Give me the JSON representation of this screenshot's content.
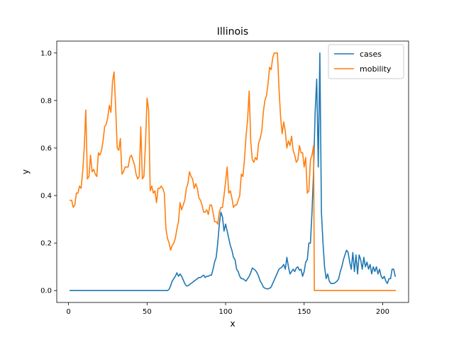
{
  "chart_data": {
    "type": "line",
    "title": "Illinois",
    "xlabel": "x",
    "ylabel": "y",
    "xlim": [
      -7.5,
      216.5
    ],
    "ylim": [
      -0.05,
      1.05
    ],
    "xticks": [
      0,
      50,
      100,
      150,
      200
    ],
    "yticks": [
      0.0,
      0.2,
      0.4,
      0.6,
      0.8,
      1.0
    ],
    "xtick_labels": [
      "0",
      "50",
      "100",
      "150",
      "200"
    ],
    "ytick_labels": [
      "0.0",
      "0.2",
      "0.4",
      "0.6",
      "0.8",
      "1.0"
    ],
    "grid": false,
    "legend_position": "top-right",
    "series": [
      {
        "name": "cases",
        "color": "#1f77b4",
        "points": [
          [
            1,
            0
          ],
          [
            10,
            0
          ],
          [
            20,
            0
          ],
          [
            30,
            0
          ],
          [
            40,
            0
          ],
          [
            50,
            0
          ],
          [
            60,
            0
          ],
          [
            63,
            0
          ],
          [
            64,
            0.005
          ],
          [
            65,
            0.02
          ],
          [
            66,
            0.04
          ],
          [
            67,
            0.05
          ],
          [
            68,
            0.06
          ],
          [
            69,
            0.075
          ],
          [
            70,
            0.06
          ],
          [
            71,
            0.07
          ],
          [
            72,
            0.06
          ],
          [
            73,
            0.045
          ],
          [
            74,
            0.03
          ],
          [
            75,
            0.02
          ],
          [
            76,
            0.02
          ],
          [
            77,
            0.025
          ],
          [
            78,
            0.03
          ],
          [
            79,
            0.035
          ],
          [
            80,
            0.04
          ],
          [
            81,
            0.045
          ],
          [
            82,
            0.05
          ],
          [
            83,
            0.055
          ],
          [
            84,
            0.055
          ],
          [
            85,
            0.06
          ],
          [
            86,
            0.065
          ],
          [
            87,
            0.055
          ],
          [
            88,
            0.06
          ],
          [
            89,
            0.06
          ],
          [
            90,
            0.065
          ],
          [
            91,
            0.065
          ],
          [
            92,
            0.09
          ],
          [
            93,
            0.12
          ],
          [
            94,
            0.14
          ],
          [
            95,
            0.2
          ],
          [
            96,
            0.28
          ],
          [
            97,
            0.33
          ],
          [
            98,
            0.31
          ],
          [
            99,
            0.25
          ],
          [
            100,
            0.28
          ],
          [
            101,
            0.25
          ],
          [
            102,
            0.22
          ],
          [
            103,
            0.19
          ],
          [
            104,
            0.17
          ],
          [
            105,
            0.14
          ],
          [
            106,
            0.13
          ],
          [
            107,
            0.09
          ],
          [
            108,
            0.08
          ],
          [
            109,
            0.06
          ],
          [
            110,
            0.05
          ],
          [
            111,
            0.05
          ],
          [
            112,
            0.045
          ],
          [
            113,
            0.04
          ],
          [
            114,
            0.05
          ],
          [
            115,
            0.06
          ],
          [
            116,
            0.075
          ],
          [
            117,
            0.095
          ],
          [
            118,
            0.09
          ],
          [
            119,
            0.085
          ],
          [
            120,
            0.075
          ],
          [
            121,
            0.06
          ],
          [
            122,
            0.04
          ],
          [
            123,
            0.03
          ],
          [
            124,
            0.015
          ],
          [
            125,
            0.01
          ],
          [
            126,
            0.008
          ],
          [
            127,
            0.007
          ],
          [
            128,
            0.01
          ],
          [
            129,
            0.015
          ],
          [
            130,
            0.03
          ],
          [
            131,
            0.045
          ],
          [
            132,
            0.06
          ],
          [
            133,
            0.075
          ],
          [
            134,
            0.09
          ],
          [
            135,
            0.095
          ],
          [
            136,
            0.1
          ],
          [
            137,
            0.11
          ],
          [
            138,
            0.09
          ],
          [
            139,
            0.14
          ],
          [
            140,
            0.1
          ],
          [
            141,
            0.07
          ],
          [
            142,
            0.08
          ],
          [
            143,
            0.09
          ],
          [
            144,
            0.08
          ],
          [
            145,
            0.095
          ],
          [
            146,
            0.1
          ],
          [
            147,
            0.085
          ],
          [
            148,
            0.09
          ],
          [
            149,
            0.06
          ],
          [
            150,
            0.08
          ],
          [
            151,
            0.12
          ],
          [
            152,
            0.13
          ],
          [
            153,
            0.2
          ],
          [
            154,
            0.2
          ],
          [
            155,
            0.33
          ],
          [
            156,
            0.5
          ],
          [
            157,
            0.75
          ],
          [
            158,
            0.89
          ],
          [
            159,
            0.52
          ],
          [
            160,
            1.0
          ],
          [
            161,
            0.33
          ],
          [
            162,
            0.2
          ],
          [
            163,
            0.1
          ],
          [
            164,
            0.05
          ],
          [
            165,
            0.07
          ],
          [
            166,
            0.04
          ],
          [
            167,
            0.03
          ],
          [
            168,
            0.03
          ],
          [
            169,
            0.03
          ],
          [
            170,
            0.035
          ],
          [
            171,
            0.04
          ],
          [
            172,
            0.05
          ],
          [
            173,
            0.08
          ],
          [
            174,
            0.1
          ],
          [
            175,
            0.13
          ],
          [
            176,
            0.15
          ],
          [
            177,
            0.17
          ],
          [
            178,
            0.16
          ],
          [
            179,
            0.12
          ],
          [
            180,
            0.09
          ],
          [
            181,
            0.16
          ],
          [
            182,
            0.08
          ],
          [
            183,
            0.15
          ],
          [
            184,
            0.07
          ],
          [
            185,
            0.15
          ],
          [
            186,
            0.13
          ],
          [
            187,
            0.09
          ],
          [
            188,
            0.14
          ],
          [
            189,
            0.1
          ],
          [
            190,
            0.12
          ],
          [
            191,
            0.09
          ],
          [
            192,
            0.11
          ],
          [
            193,
            0.07
          ],
          [
            194,
            0.1
          ],
          [
            195,
            0.08
          ],
          [
            196,
            0.1
          ],
          [
            197,
            0.07
          ],
          [
            198,
            0.09
          ],
          [
            199,
            0.06
          ],
          [
            200,
            0.05
          ],
          [
            201,
            0.06
          ],
          [
            202,
            0.04
          ],
          [
            203,
            0.03
          ],
          [
            204,
            0.05
          ],
          [
            205,
            0.05
          ],
          [
            206,
            0.09
          ],
          [
            207,
            0.09
          ],
          [
            208,
            0.06
          ]
        ]
      },
      {
        "name": "mobility",
        "color": "#ff7f0e",
        "points": [
          [
            1,
            0.38
          ],
          [
            2,
            0.38
          ],
          [
            3,
            0.35
          ],
          [
            4,
            0.36
          ],
          [
            5,
            0.41
          ],
          [
            6,
            0.41
          ],
          [
            7,
            0.44
          ],
          [
            8,
            0.43
          ],
          [
            9,
            0.5
          ],
          [
            10,
            0.6
          ],
          [
            11,
            0.76
          ],
          [
            12,
            0.47
          ],
          [
            13,
            0.48
          ],
          [
            14,
            0.57
          ],
          [
            15,
            0.5
          ],
          [
            16,
            0.51
          ],
          [
            17,
            0.49
          ],
          [
            18,
            0.48
          ],
          [
            19,
            0.58
          ],
          [
            20,
            0.57
          ],
          [
            21,
            0.59
          ],
          [
            22,
            0.63
          ],
          [
            23,
            0.69
          ],
          [
            24,
            0.7
          ],
          [
            25,
            0.73
          ],
          [
            26,
            0.78
          ],
          [
            27,
            0.75
          ],
          [
            28,
            0.88
          ],
          [
            29,
            0.92
          ],
          [
            30,
            0.77
          ],
          [
            31,
            0.6
          ],
          [
            32,
            0.59
          ],
          [
            33,
            0.64
          ],
          [
            34,
            0.49
          ],
          [
            35,
            0.5
          ],
          [
            36,
            0.52
          ],
          [
            37,
            0.52
          ],
          [
            38,
            0.52
          ],
          [
            39,
            0.56
          ],
          [
            40,
            0.57
          ],
          [
            41,
            0.55
          ],
          [
            42,
            0.53
          ],
          [
            43,
            0.49
          ],
          [
            44,
            0.47
          ],
          [
            45,
            0.48
          ],
          [
            46,
            0.69
          ],
          [
            47,
            0.47
          ],
          [
            48,
            0.48
          ],
          [
            49,
            0.62
          ],
          [
            50,
            0.81
          ],
          [
            51,
            0.76
          ],
          [
            52,
            0.42
          ],
          [
            53,
            0.44
          ],
          [
            54,
            0.41
          ],
          [
            55,
            0.42
          ],
          [
            56,
            0.37
          ],
          [
            57,
            0.43
          ],
          [
            58,
            0.43
          ],
          [
            59,
            0.44
          ],
          [
            60,
            0.43
          ],
          [
            61,
            0.41
          ],
          [
            62,
            0.26
          ],
          [
            63,
            0.22
          ],
          [
            64,
            0.2
          ],
          [
            65,
            0.17
          ],
          [
            66,
            0.19
          ],
          [
            67,
            0.2
          ],
          [
            68,
            0.22
          ],
          [
            69,
            0.26
          ],
          [
            70,
            0.29
          ],
          [
            71,
            0.37
          ],
          [
            72,
            0.34
          ],
          [
            73,
            0.36
          ],
          [
            74,
            0.38
          ],
          [
            75,
            0.43
          ],
          [
            76,
            0.45
          ],
          [
            77,
            0.5
          ],
          [
            78,
            0.48
          ],
          [
            79,
            0.47
          ],
          [
            80,
            0.43
          ],
          [
            81,
            0.45
          ],
          [
            82,
            0.43
          ],
          [
            83,
            0.39
          ],
          [
            84,
            0.38
          ],
          [
            85,
            0.36
          ],
          [
            86,
            0.33
          ],
          [
            87,
            0.33
          ],
          [
            88,
            0.34
          ],
          [
            89,
            0.32
          ],
          [
            90,
            0.36
          ],
          [
            91,
            0.36
          ],
          [
            92,
            0.33
          ],
          [
            93,
            0.29
          ],
          [
            94,
            0.29
          ],
          [
            95,
            0.28
          ],
          [
            96,
            0.33
          ],
          [
            97,
            0.35
          ],
          [
            98,
            0.35
          ],
          [
            99,
            0.4
          ],
          [
            100,
            0.46
          ],
          [
            101,
            0.52
          ],
          [
            102,
            0.41
          ],
          [
            103,
            0.42
          ],
          [
            104,
            0.39
          ],
          [
            105,
            0.35
          ],
          [
            106,
            0.36
          ],
          [
            107,
            0.36
          ],
          [
            108,
            0.38
          ],
          [
            109,
            0.4
          ],
          [
            110,
            0.49
          ],
          [
            111,
            0.48
          ],
          [
            112,
            0.55
          ],
          [
            113,
            0.65
          ],
          [
            114,
            0.72
          ],
          [
            115,
            0.84
          ],
          [
            116,
            0.63
          ],
          [
            117,
            0.55
          ],
          [
            118,
            0.54
          ],
          [
            119,
            0.56
          ],
          [
            120,
            0.55
          ],
          [
            121,
            0.62
          ],
          [
            122,
            0.64
          ],
          [
            123,
            0.67
          ],
          [
            124,
            0.75
          ],
          [
            125,
            0.8
          ],
          [
            126,
            0.82
          ],
          [
            127,
            0.87
          ],
          [
            128,
            0.94
          ],
          [
            129,
            0.93
          ],
          [
            130,
            0.98
          ],
          [
            131,
            1.0
          ],
          [
            132,
            1.0
          ],
          [
            133,
            1.0
          ],
          [
            134,
            0.85
          ],
          [
            135,
            0.73
          ],
          [
            136,
            0.66
          ],
          [
            137,
            0.71
          ],
          [
            138,
            0.67
          ],
          [
            139,
            0.6
          ],
          [
            140,
            0.63
          ],
          [
            141,
            0.61
          ],
          [
            142,
            0.65
          ],
          [
            143,
            0.59
          ],
          [
            144,
            0.57
          ],
          [
            145,
            0.54
          ],
          [
            146,
            0.55
          ],
          [
            147,
            0.61
          ],
          [
            148,
            0.58
          ],
          [
            149,
            0.58
          ],
          [
            150,
            0.52
          ],
          [
            151,
            0.56
          ],
          [
            152,
            0.41
          ],
          [
            153,
            0.42
          ],
          [
            154,
            0.55
          ],
          [
            155,
            0.57
          ],
          [
            156,
            0.61
          ],
          [
            156.5,
            0.0
          ],
          [
            160,
            0
          ],
          [
            170,
            0
          ],
          [
            180,
            0
          ],
          [
            190,
            0
          ],
          [
            200,
            0
          ],
          [
            208,
            0
          ]
        ]
      }
    ]
  }
}
